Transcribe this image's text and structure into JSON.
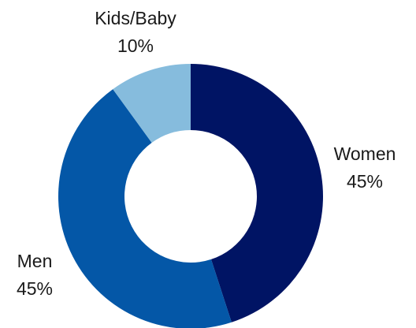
{
  "chart_data": {
    "type": "pie",
    "title": "",
    "donut": true,
    "categories": [
      "Women",
      "Men",
      "Kids/Baby"
    ],
    "values": [
      45,
      45,
      10
    ],
    "value_labels": [
      "45%",
      "45%",
      "10%"
    ],
    "colors": [
      "#001464",
      "#0457A7",
      "#86BCDD"
    ],
    "start_angle_deg": 0,
    "direction": "clockwise",
    "legend": "none"
  }
}
